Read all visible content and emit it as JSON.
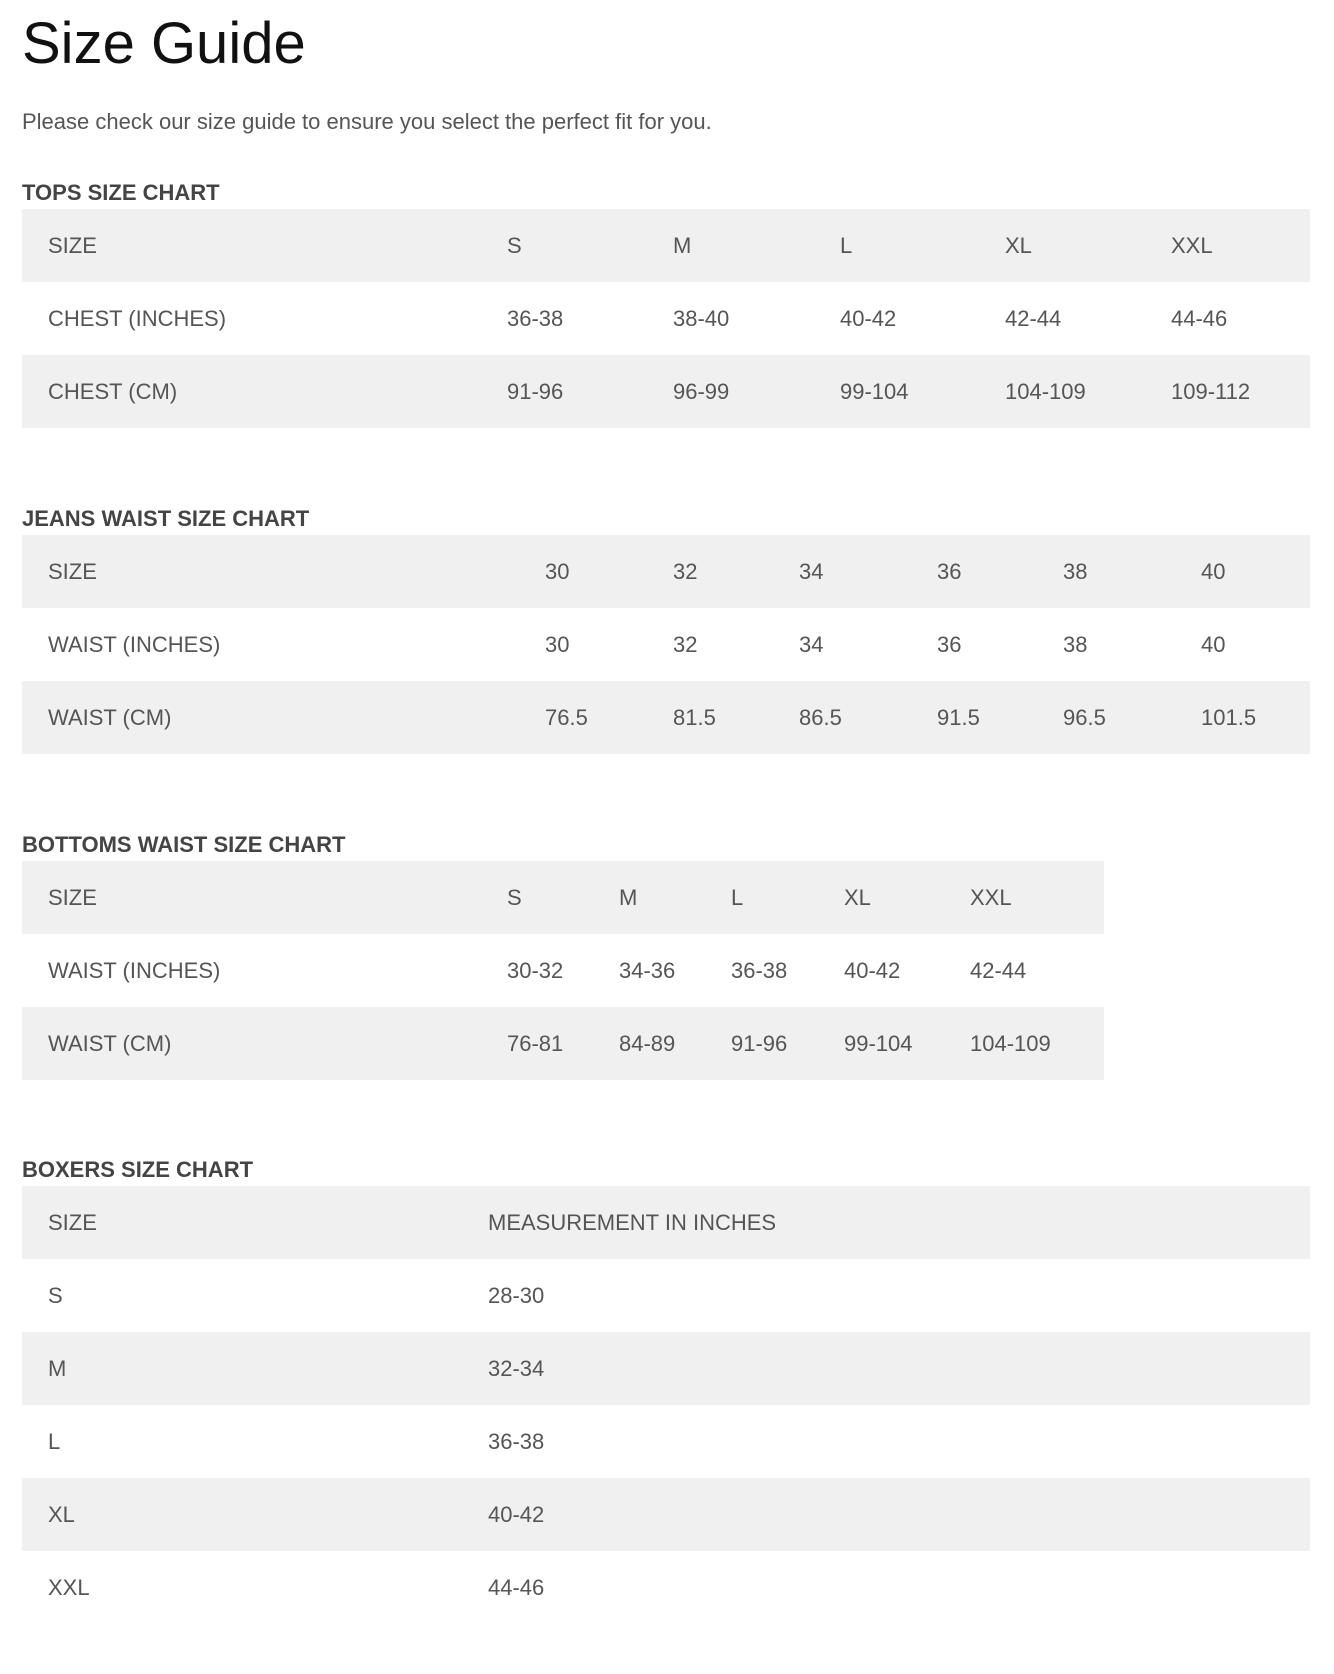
{
  "title": "Size Guide",
  "subtitle": "Please check our size guide to ensure you select the perfect fit for you.",
  "tables": [
    {
      "heading": "TOPS SIZE CHART",
      "rows": [
        [
          "SIZE",
          "S",
          "M",
          "L",
          "XL",
          "XXL"
        ],
        [
          "CHEST (INCHES)",
          "36-38",
          "38-40",
          "40-42",
          "42-44",
          "44-46"
        ],
        [
          "CHEST (CM)",
          "91-96",
          "96-99",
          "99-104",
          "104-109",
          "109-112"
        ]
      ]
    },
    {
      "heading": "JEANS WAIST SIZE CHART",
      "rows": [
        [
          "SIZE",
          "30",
          "32",
          "34",
          "36",
          "38",
          "40"
        ],
        [
          "WAIST (INCHES)",
          "30",
          "32",
          "34",
          "36",
          "38",
          "40"
        ],
        [
          "WAIST (CM)",
          "76.5",
          "81.5",
          "86.5",
          "91.5",
          "96.5",
          "101.5"
        ]
      ]
    },
    {
      "heading": "BOTTOMS WAIST SIZE CHART",
      "rows": [
        [
          "SIZE",
          "S",
          "M",
          "L",
          "XL",
          "XXL"
        ],
        [
          "WAIST (INCHES)",
          "30-32",
          "34-36",
          "36-38",
          "40-42",
          "42-44"
        ],
        [
          "WAIST (CM)",
          "76-81",
          "84-89",
          "91-96",
          "99-104",
          "104-109"
        ]
      ]
    },
    {
      "heading": "BOXERS SIZE CHART",
      "rows": [
        [
          "SIZE",
          "MEASUREMENT IN INCHES"
        ],
        [
          "S",
          "28-30"
        ],
        [
          "M",
          "32-34"
        ],
        [
          "L",
          "36-38"
        ],
        [
          "XL",
          "40-42"
        ],
        [
          "XXL",
          "44-46"
        ]
      ]
    }
  ]
}
